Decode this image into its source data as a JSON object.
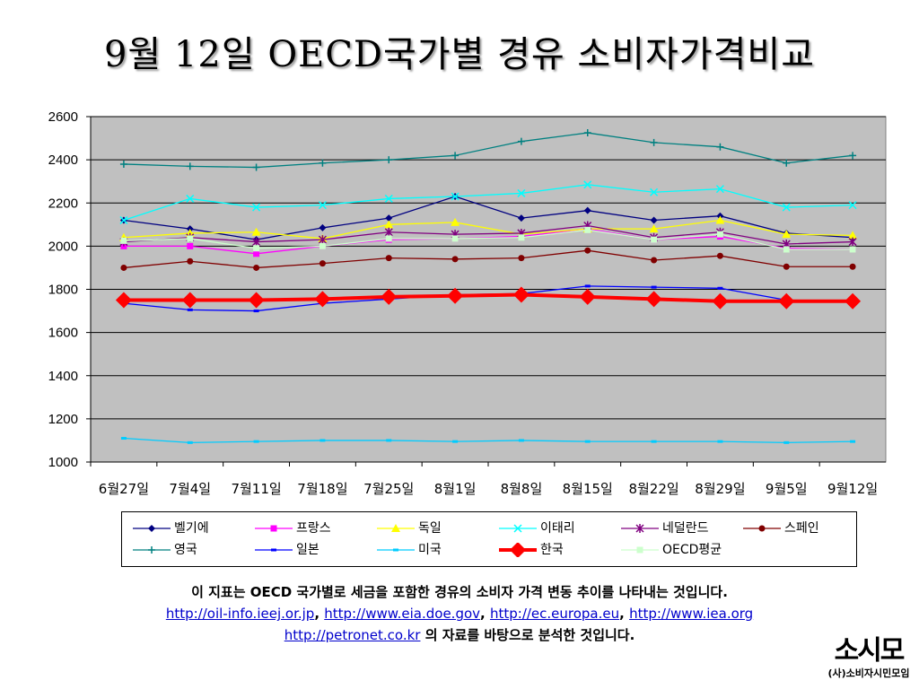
{
  "title": "9월 12일 OECD국가별 경유 소비자가격비교",
  "chart_data": {
    "type": "line",
    "categories": [
      "6월27일",
      "7월4일",
      "7월11일",
      "7월18일",
      "7월25일",
      "8월1일",
      "8월8일",
      "8월15일",
      "8월22일",
      "8월29일",
      "9월5일",
      "9월12일"
    ],
    "y_ticks": [
      "1000",
      "1200",
      "1400",
      "1600",
      "1800",
      "2000",
      "2200",
      "2400",
      "2600"
    ],
    "ylim": [
      1000,
      2600
    ],
    "grid": "horizontal",
    "plot_background": "#c0c0c0",
    "legend_position": "bottom",
    "series": [
      {
        "name": "벨기에",
        "color": "#000080",
        "marker": "diamond",
        "values": [
          2120,
          2080,
          2030,
          2085,
          2130,
          2230,
          2130,
          2165,
          2120,
          2140,
          2060,
          2040
        ]
      },
      {
        "name": "프랑스",
        "color": "#ff00ff",
        "marker": "square",
        "values": [
          2000,
          2000,
          1965,
          2000,
          2030,
          2035,
          2045,
          2080,
          2030,
          2045,
          1990,
          1985
        ]
      },
      {
        "name": "독일",
        "color": "#ffff00",
        "marker": "triangle",
        "values": [
          2040,
          2060,
          2065,
          2035,
          2100,
          2110,
          2055,
          2080,
          2080,
          2120,
          2055,
          2050
        ]
      },
      {
        "name": "이태리",
        "color": "#00ffff",
        "marker": "x",
        "values": [
          2120,
          2220,
          2180,
          2190,
          2220,
          2230,
          2245,
          2285,
          2250,
          2265,
          2180,
          2190
        ]
      },
      {
        "name": "네덜란드",
        "color": "#800080",
        "marker": "star",
        "values": [
          2020,
          2040,
          2020,
          2030,
          2065,
          2055,
          2060,
          2095,
          2040,
          2065,
          2010,
          2020
        ]
      },
      {
        "name": "스페인",
        "color": "#800000",
        "marker": "circle",
        "values": [
          1900,
          1930,
          1900,
          1920,
          1945,
          1940,
          1945,
          1980,
          1935,
          1955,
          1905,
          1905
        ]
      },
      {
        "name": "영국",
        "color": "#008080",
        "marker": "plus",
        "values": [
          2380,
          2370,
          2365,
          2385,
          2400,
          2420,
          2485,
          2525,
          2480,
          2460,
          2385,
          2420
        ]
      },
      {
        "name": "일본",
        "color": "#0000ff",
        "marker": "dash",
        "values": [
          1735,
          1705,
          1700,
          1735,
          1755,
          1775,
          1780,
          1815,
          1810,
          1805,
          1750,
          1745
        ]
      },
      {
        "name": "미국",
        "color": "#00ccff",
        "marker": "dash",
        "values": [
          1110,
          1090,
          1095,
          1100,
          1100,
          1095,
          1100,
          1095,
          1095,
          1095,
          1090,
          1095
        ]
      },
      {
        "name": "한국",
        "color": "#ff0000",
        "marker": "big-diamond",
        "values": [
          1750,
          1750,
          1750,
          1755,
          1765,
          1770,
          1775,
          1765,
          1755,
          1745,
          1745,
          1745
        ]
      },
      {
        "name": "OECD평균",
        "color": "#ccffcc",
        "marker": "square",
        "values": [
          2025,
          2035,
          1990,
          2000,
          2035,
          2035,
          2040,
          2075,
          2030,
          2055,
          1985,
          1985
        ]
      }
    ]
  },
  "caption": {
    "line1": "이 지표는 OECD 국가별로 세금을 포함한 경유의 소비자 가격 변동 추이를 나타내는 것입니다.",
    "link1": "http://oil-info.ieej.or.jp",
    "link2": "http://www.eia.doe.gov",
    "link3": "http://ec.europa.eu",
    "link4": "http://www.iea.org",
    "link5": "http://petronet.co.kr",
    "sep": ",",
    "line3_tail": "의 자료를 바탕으로 분석한 것입니다."
  },
  "logo": {
    "mark": "소시모",
    "sub": "(사)소비자시민모임"
  }
}
